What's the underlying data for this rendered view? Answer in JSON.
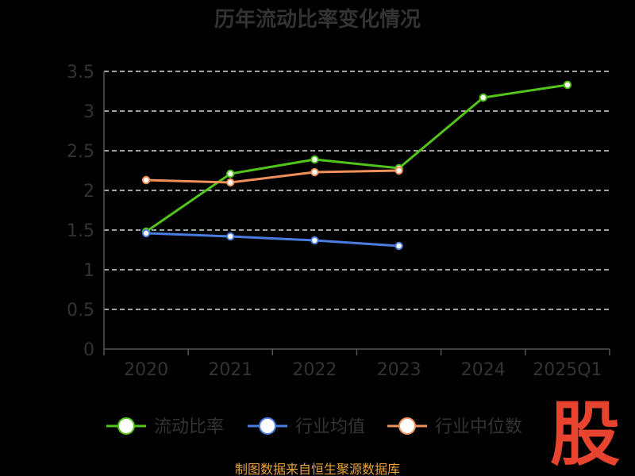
{
  "colors": {
    "current_ratio": "#52c41a",
    "industry_avg": "#4a7de0",
    "industry_median": "#f0905a",
    "logo": "#e8432e",
    "source": "#e8a33c"
  },
  "watermark": {
    "logo_text": "股",
    "source": "制图数据来自恒生聚源数据库"
  },
  "chart_data": {
    "type": "line",
    "title": "历年流动比率变化情况",
    "categories": [
      "2020",
      "2021",
      "2022",
      "2023",
      "2024",
      "2025Q1"
    ],
    "ylim": [
      0,
      3.5
    ],
    "yticks": [
      "0",
      "0.5",
      "1",
      "1.5",
      "2",
      "2.5",
      "3",
      "3.5"
    ],
    "grid": true,
    "legend_position": "bottom",
    "series": [
      {
        "name": "流动比率",
        "color": "#52c41a",
        "values": [
          1.48,
          2.21,
          2.39,
          2.28,
          3.17,
          3.33
        ]
      },
      {
        "name": "行业均值",
        "color": "#4a7de0",
        "values": [
          1.46,
          1.42,
          1.37,
          1.3,
          null,
          null
        ]
      },
      {
        "name": "行业中位数",
        "color": "#f0905a",
        "values": [
          2.13,
          2.1,
          2.23,
          2.25,
          null,
          null
        ]
      }
    ]
  }
}
